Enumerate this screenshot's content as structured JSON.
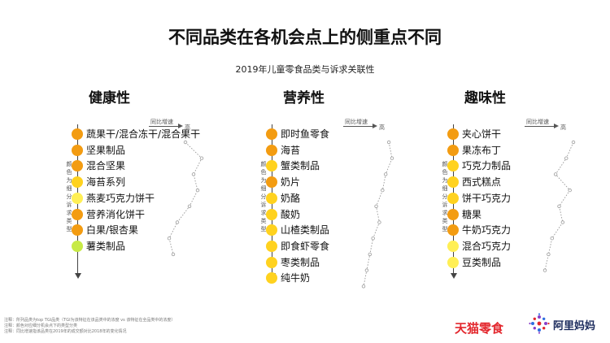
{
  "title": "不同品类在各机会点上的侧重点不同",
  "subtitle": "2019年儿童零食品类与诉求关联性",
  "side_label": "颜色为细分诉求类型",
  "growth_title": "同比增速",
  "growth_high": "高",
  "notes": [
    "注释：所列品类为top TGI品类（TGI为该特征在该品类中的浓度 vs 该特征在全品类中的浓度）",
    "注释：颜色对应细分机会点下的类型分类",
    "注释：同比增速指该品类在2019年的成交额对比2018年的变化情况"
  ],
  "logos": {
    "tmall": "天猫零食",
    "alimama": "阿里妈妈"
  },
  "colors": {
    "orange": "#f39c12",
    "yellow": "#ffd21f",
    "lightyellow": "#ffef55",
    "green": "#c7ea46"
  },
  "chart_data": [
    {
      "type": "ranked-list",
      "title": "健康性",
      "items": [
        {
          "label": "蔬果干/混合冻干/混合果干",
          "color": "orange",
          "growth_rank": 5
        },
        {
          "label": "坚果制品",
          "color": "orange",
          "growth_rank": 9
        },
        {
          "label": "混合坚果",
          "color": "orange",
          "growth_rank": 7
        },
        {
          "label": "海苔系列",
          "color": "yellow",
          "growth_rank": 8
        },
        {
          "label": "燕麦巧克力饼干",
          "color": "lightyellow",
          "growth_rank": 6
        },
        {
          "label": "营养消化饼干",
          "color": "orange",
          "growth_rank": 3
        },
        {
          "label": "白果/银杏果",
          "color": "orange",
          "growth_rank": 1
        },
        {
          "label": "薯类制品",
          "color": "green",
          "growth_rank": 2
        }
      ]
    },
    {
      "type": "ranked-list",
      "title": "营养性",
      "items": [
        {
          "label": "即时鱼零食",
          "color": "orange",
          "growth_rank": 9
        },
        {
          "label": "海苔",
          "color": "orange",
          "growth_rank": 10
        },
        {
          "label": "蟹类制品",
          "color": "yellow",
          "growth_rank": 8
        },
        {
          "label": "奶片",
          "color": "orange",
          "growth_rank": 7
        },
        {
          "label": "奶酪",
          "color": "yellow",
          "growth_rank": 5
        },
        {
          "label": "酸奶",
          "color": "yellow",
          "growth_rank": 6
        },
        {
          "label": "山楂类制品",
          "color": "yellow",
          "growth_rank": 4
        },
        {
          "label": "即食虾零食",
          "color": "yellow",
          "growth_rank": 3
        },
        {
          "label": "枣类制品",
          "color": "yellow",
          "growth_rank": 2
        },
        {
          "label": "纯牛奶",
          "color": "yellow",
          "growth_rank": 1
        }
      ]
    },
    {
      "type": "ranked-list",
      "title": "趣味性",
      "items": [
        {
          "label": "夹心饼干",
          "color": "orange",
          "growth_rank": 9
        },
        {
          "label": "果冻布丁",
          "color": "orange",
          "growth_rank": 7
        },
        {
          "label": "巧克力制品",
          "color": "yellow",
          "growth_rank": 4
        },
        {
          "label": "西式糕点",
          "color": "yellow",
          "growth_rank": 8
        },
        {
          "label": "饼干巧克力",
          "color": "yellow",
          "growth_rank": 5
        },
        {
          "label": "糖果",
          "color": "orange",
          "growth_rank": 6
        },
        {
          "label": "牛奶巧克力",
          "color": "orange",
          "growth_rank": 3
        },
        {
          "label": "混合巧克力",
          "color": "lightyellow",
          "growth_rank": 2
        },
        {
          "label": "豆类制品",
          "color": "lightyellow",
          "growth_rank": 1
        }
      ]
    }
  ]
}
